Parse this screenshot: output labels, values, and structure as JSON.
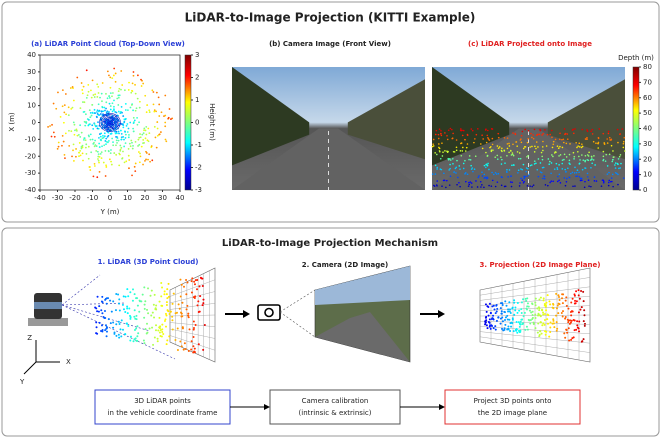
{
  "header": {
    "title": "LiDAR-to-Image Projection (KITTI Example)"
  },
  "panels": [
    {
      "title": "(a) LiDAR Point Cloud (Top-Down View)",
      "x_label": "Y (m)",
      "y_label": "X (m)",
      "xticks": [
        -40,
        -30,
        -20,
        -10,
        0,
        10,
        20,
        30,
        40
      ],
      "yticks": [
        -40,
        -30,
        -20,
        -10,
        0,
        10,
        20,
        30,
        40
      ],
      "colorbar_label": "Height (m)",
      "colorbar_ticks": [
        -3,
        -2,
        -1,
        0,
        1,
        2,
        3
      ]
    },
    {
      "title": "(b) Camera Image (Front View)"
    },
    {
      "title": "(c) LiDAR Projected onto Image",
      "colorbar_label": "Depth (m)",
      "colorbar_ticks": [
        0,
        10,
        20,
        30,
        40,
        50,
        60,
        70,
        80
      ]
    }
  ],
  "mechanism": {
    "title": "LiDAR-to-Image Projection Mechanism",
    "steps": [
      "1. LiDAR (3D Point Cloud)",
      "2. Camera (2D Image)",
      "3. Projection (2D Image Plane)"
    ],
    "axes": [
      "Z",
      "X",
      "Y"
    ],
    "boxes": [
      [
        "3D LiDAR points",
        "in the vehicle coordinate frame"
      ],
      [
        "Camera calibration",
        "(intrinsic & extrinsic)"
      ],
      [
        "Project 3D points onto",
        "the 2D image plane"
      ]
    ]
  }
}
